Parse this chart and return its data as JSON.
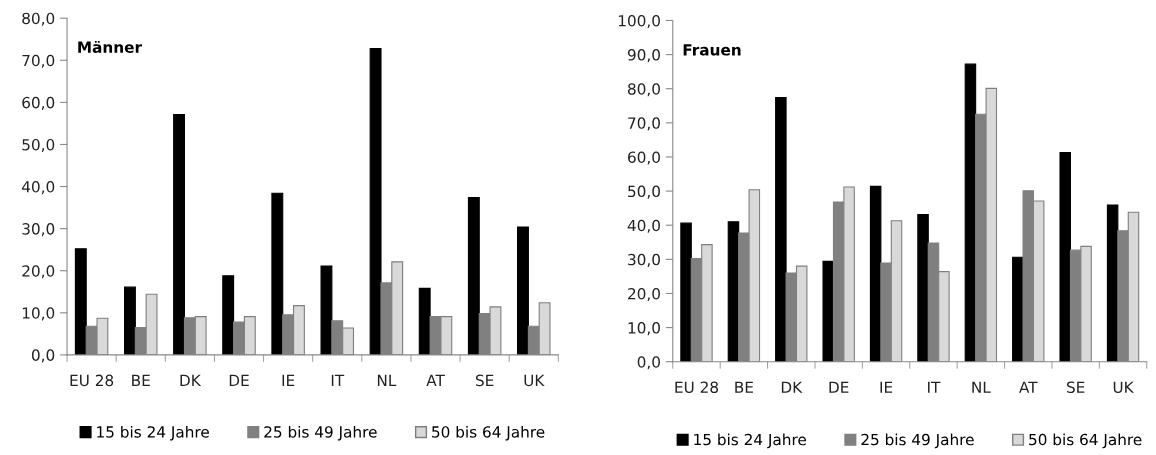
{
  "chart_data": [
    {
      "type": "bar",
      "title": "Männer",
      "categories": [
        "EU 28",
        "BE",
        "DK",
        "DE",
        "IE",
        "IT",
        "NL",
        "AT",
        "SE",
        "UK"
      ],
      "series": [
        {
          "name": "15 bis 24 Jahre",
          "color": "#000000",
          "values": [
            25.2,
            16.1,
            57.1,
            18.8,
            38.4,
            21.1,
            72.8,
            15.8,
            37.4,
            30.4
          ]
        },
        {
          "name": "25 bis 49 Jahre",
          "color": "#808080",
          "values": [
            6.8,
            6.5,
            8.8,
            7.8,
            9.5,
            8.1,
            17.1,
            9.1,
            9.8,
            6.8
          ]
        },
        {
          "name": "50 bis 64 Jahre",
          "color": "#d9d9d9",
          "values": [
            8.7,
            14.4,
            9.1,
            9.1,
            11.7,
            6.4,
            22.1,
            9.1,
            11.4,
            12.4
          ]
        }
      ],
      "ylim": [
        0,
        80
      ],
      "yticks": [
        {
          "value": 0,
          "label": "0,0"
        },
        {
          "value": 10,
          "label": "10,0"
        },
        {
          "value": 20,
          "label": "20,0"
        },
        {
          "value": 30,
          "label": "30,0"
        },
        {
          "value": 40,
          "label": "40,0"
        },
        {
          "value": 50,
          "label": "50,0"
        },
        {
          "value": 60,
          "label": "60,0"
        },
        {
          "value": 70,
          "label": "70,0"
        },
        {
          "value": 80,
          "label": "80,0"
        }
      ],
      "grid": false,
      "legend": "bottom"
    },
    {
      "type": "bar",
      "title": "Frauen",
      "categories": [
        "EU 28",
        "BE",
        "DK",
        "DE",
        "IE",
        "IT",
        "NL",
        "AT",
        "SE",
        "UK"
      ],
      "series": [
        {
          "name": "15 bis 24 Jahre",
          "color": "#000000",
          "values": [
            40.6,
            41.0,
            77.4,
            29.4,
            51.4,
            43.1,
            87.2,
            30.6,
            61.3,
            45.9
          ]
        },
        {
          "name": "25 bis 49 Jahre",
          "color": "#808080",
          "values": [
            30.2,
            37.7,
            26.0,
            46.8,
            28.9,
            34.8,
            72.5,
            50.1,
            32.7,
            38.4
          ]
        },
        {
          "name": "50 bis 64 Jahre",
          "color": "#d9d9d9",
          "values": [
            34.3,
            50.4,
            28.0,
            51.2,
            41.3,
            26.4,
            80.1,
            47.1,
            33.8,
            43.8
          ]
        }
      ],
      "ylim": [
        0,
        100
      ],
      "yticks": [
        {
          "value": 0,
          "label": "0,0"
        },
        {
          "value": 10,
          "label": "10,0"
        },
        {
          "value": 20,
          "label": "20,0"
        },
        {
          "value": 30,
          "label": "30,0"
        },
        {
          "value": 40,
          "label": "40,0"
        },
        {
          "value": 50,
          "label": "50,0"
        },
        {
          "value": 60,
          "label": "60,0"
        },
        {
          "value": 70,
          "label": "70,0"
        },
        {
          "value": 80,
          "label": "80,0"
        },
        {
          "value": 90,
          "label": "90,0"
        },
        {
          "value": 100,
          "label": "100,0"
        }
      ],
      "grid": false,
      "legend": "bottom"
    }
  ]
}
